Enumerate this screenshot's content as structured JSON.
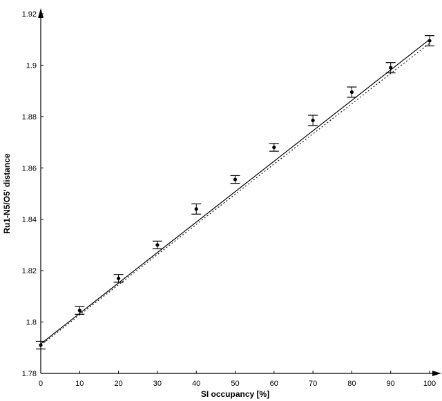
{
  "chart_data": {
    "type": "scatter",
    "xlabel": "SI occupancy [%]",
    "ylabel": "Ru1-N5/O5' distance",
    "xlim": [
      0,
      100
    ],
    "ylim": [
      1.78,
      1.92
    ],
    "x_ticks": [
      0,
      10,
      20,
      30,
      40,
      50,
      60,
      70,
      80,
      90,
      100
    ],
    "y_ticks": [
      1.78,
      1.8,
      1.82,
      1.84,
      1.86,
      1.88,
      1.9,
      1.92
    ],
    "grid": false,
    "series": [
      {
        "kind": "points_with_error_bars",
        "x": [
          0,
          10,
          20,
          30,
          40,
          50,
          60,
          70,
          80,
          90,
          100
        ],
        "y": [
          1.791,
          1.8045,
          1.817,
          1.83,
          1.844,
          1.8555,
          1.868,
          1.8785,
          1.8895,
          1.899,
          1.9095
        ],
        "err_upper": [
          1.7925,
          1.806,
          1.8185,
          1.8315,
          1.846,
          1.857,
          1.8695,
          1.8805,
          1.8915,
          1.901,
          1.9115
        ],
        "err_lower": [
          1.7895,
          1.803,
          1.8155,
          1.8285,
          1.842,
          1.854,
          1.8665,
          1.8765,
          1.8875,
          1.897,
          1.9075
        ]
      },
      {
        "kind": "line",
        "style": "solid",
        "x": [
          0,
          100
        ],
        "y": [
          1.7915,
          1.91
        ]
      },
      {
        "kind": "line",
        "style": "dotted",
        "x": [
          0,
          100
        ],
        "y": [
          1.791,
          1.9085
        ]
      }
    ]
  }
}
